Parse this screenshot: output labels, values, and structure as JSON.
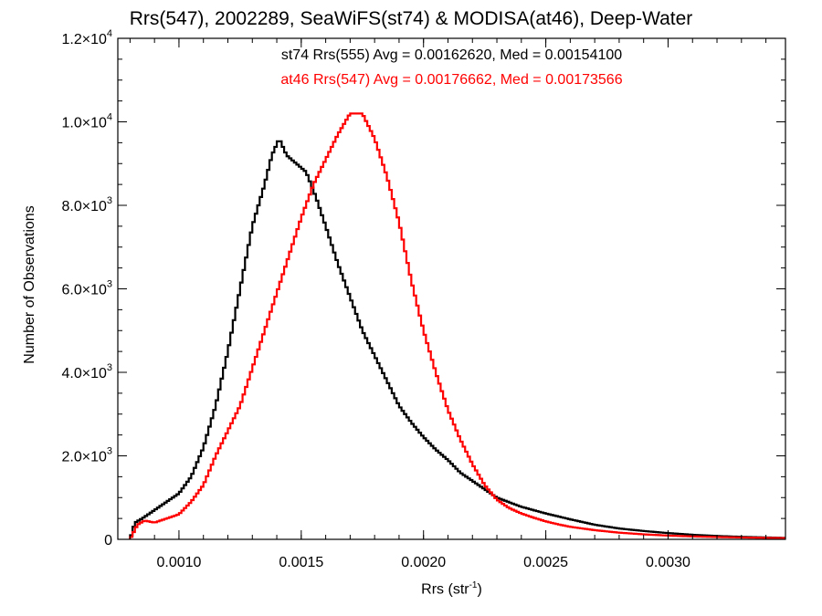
{
  "chart_data": {
    "type": "line",
    "title": "Rrs(547), 2002289, SeaWiFS(st74) & MODISA(at46), Deep-Water",
    "xlabel": {
      "base": "Rrs (str",
      "sup": "-1",
      "tail": ")"
    },
    "ylabel": "Number of Observations",
    "xlim": [
      0.00075,
      0.00348
    ],
    "ylim": [
      0,
      12000
    ],
    "x_ticks": [
      0.001,
      0.0015,
      0.002,
      0.0025,
      0.003
    ],
    "x_tick_labels": [
      "0.0010",
      "0.0015",
      "0.0020",
      "0.0025",
      "0.0030"
    ],
    "y_ticks": [
      0,
      2000,
      4000,
      6000,
      8000,
      10000,
      12000
    ],
    "y_tick_labels": [
      {
        "base": "0",
        "sup": ""
      },
      {
        "base": "2.0×10",
        "sup": "3"
      },
      {
        "base": "4.0×10",
        "sup": "3"
      },
      {
        "base": "6.0×10",
        "sup": "3"
      },
      {
        "base": "8.0×10",
        "sup": "3"
      },
      {
        "base": "1.0×10",
        "sup": "4"
      },
      {
        "base": "1.2×10",
        "sup": "4"
      }
    ],
    "legend": [
      "st74 Rrs(555) Avg = 0.00162620, Med = 0.00154100",
      "at46 Rrs(547) Avg = 0.00176662, Med = 0.00173566"
    ],
    "series": [
      {
        "color": "#000000",
        "points": [
          [
            0.0008,
            0
          ],
          [
            0.00082,
            400
          ],
          [
            0.00085,
            500
          ],
          [
            0.0009,
            700
          ],
          [
            0.00095,
            900
          ],
          [
            0.001,
            1100
          ],
          [
            0.00105,
            1500
          ],
          [
            0.0011,
            2200
          ],
          [
            0.00115,
            3200
          ],
          [
            0.0012,
            4500
          ],
          [
            0.00125,
            6000
          ],
          [
            0.0013,
            7500
          ],
          [
            0.00135,
            8500
          ],
          [
            0.00138,
            9200
          ],
          [
            0.00141,
            9600
          ],
          [
            0.00144,
            9200
          ],
          [
            0.00148,
            9000
          ],
          [
            0.00152,
            8800
          ],
          [
            0.00156,
            8200
          ],
          [
            0.0016,
            7500
          ],
          [
            0.00165,
            6600
          ],
          [
            0.0017,
            5800
          ],
          [
            0.00175,
            5000
          ],
          [
            0.0018,
            4400
          ],
          [
            0.00185,
            3800
          ],
          [
            0.0019,
            3200
          ],
          [
            0.00195,
            2800
          ],
          [
            0.002,
            2450
          ],
          [
            0.00205,
            2150
          ],
          [
            0.0021,
            1900
          ],
          [
            0.00215,
            1600
          ],
          [
            0.0022,
            1400
          ],
          [
            0.00225,
            1200
          ],
          [
            0.0023,
            1000
          ],
          [
            0.0024,
            780
          ],
          [
            0.0025,
            620
          ],
          [
            0.0026,
            480
          ],
          [
            0.0027,
            350
          ],
          [
            0.0028,
            260
          ],
          [
            0.0029,
            200
          ],
          [
            0.003,
            150
          ],
          [
            0.0031,
            110
          ],
          [
            0.0032,
            80
          ],
          [
            0.0033,
            60
          ],
          [
            0.0034,
            45
          ],
          [
            0.00348,
            35
          ]
        ]
      },
      {
        "color": "#ff0000",
        "points": [
          [
            0.0008,
            0
          ],
          [
            0.00083,
            350
          ],
          [
            0.00086,
            450
          ],
          [
            0.0009,
            400
          ],
          [
            0.00095,
            500
          ],
          [
            0.001,
            600
          ],
          [
            0.00105,
            900
          ],
          [
            0.0011,
            1300
          ],
          [
            0.00115,
            2000
          ],
          [
            0.0012,
            2600
          ],
          [
            0.00125,
            3200
          ],
          [
            0.0013,
            4100
          ],
          [
            0.00135,
            5000
          ],
          [
            0.0014,
            5900
          ],
          [
            0.00145,
            6800
          ],
          [
            0.0015,
            7700
          ],
          [
            0.00155,
            8500
          ],
          [
            0.0016,
            9100
          ],
          [
            0.00165,
            9700
          ],
          [
            0.0017,
            10200
          ],
          [
            0.00175,
            10200
          ],
          [
            0.0018,
            9600
          ],
          [
            0.00185,
            8700
          ],
          [
            0.0019,
            7600
          ],
          [
            0.00195,
            6200
          ],
          [
            0.002,
            5000
          ],
          [
            0.00205,
            4000
          ],
          [
            0.0021,
            3100
          ],
          [
            0.00215,
            2400
          ],
          [
            0.0022,
            1800
          ],
          [
            0.00225,
            1300
          ],
          [
            0.0023,
            950
          ],
          [
            0.00235,
            750
          ],
          [
            0.0024,
            620
          ],
          [
            0.00245,
            520
          ],
          [
            0.0025,
            430
          ],
          [
            0.00255,
            360
          ],
          [
            0.0026,
            300
          ],
          [
            0.0027,
            220
          ],
          [
            0.0028,
            160
          ],
          [
            0.0029,
            120
          ],
          [
            0.003,
            90
          ],
          [
            0.0031,
            70
          ],
          [
            0.0032,
            55
          ],
          [
            0.0033,
            45
          ],
          [
            0.0034,
            35
          ],
          [
            0.00348,
            30
          ]
        ]
      }
    ]
  }
}
